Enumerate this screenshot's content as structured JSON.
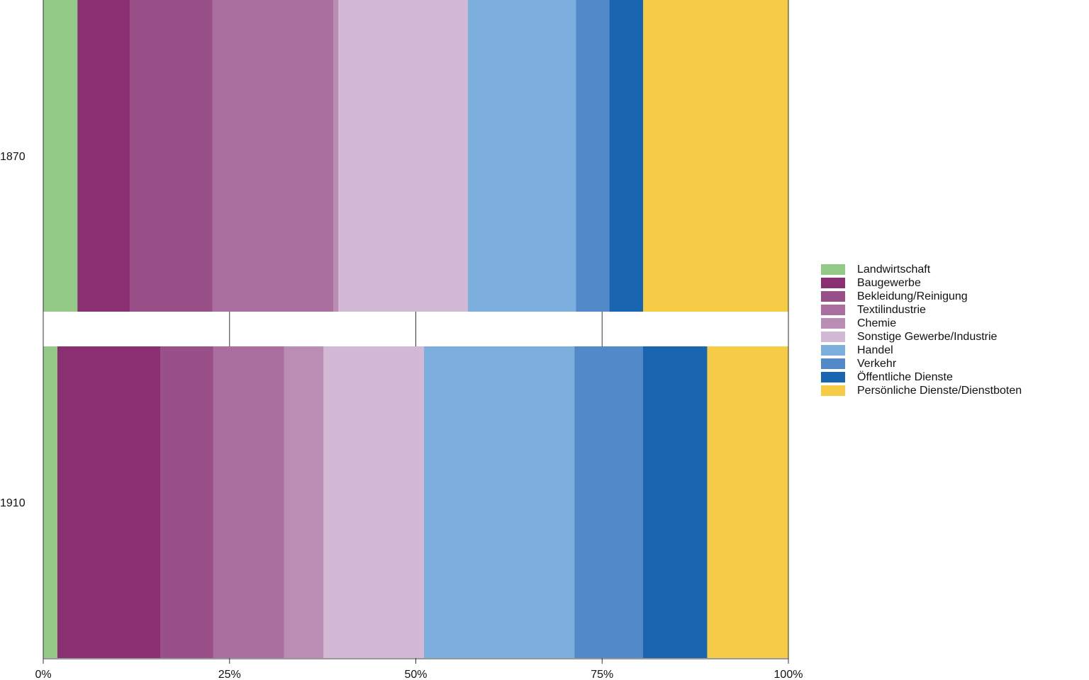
{
  "chart_data": {
    "type": "bar",
    "orientation": "horizontal",
    "stacked": true,
    "normalized": true,
    "categories": [
      "1870",
      "1910"
    ],
    "x_tick_labels": [
      "0%",
      "25%",
      "50%",
      "75%",
      "100%"
    ],
    "xlim": [
      0,
      100
    ],
    "grid": false,
    "legend_position": "right",
    "series": [
      {
        "name": "Landwirtschaft",
        "color": "#92c987",
        "values": [
          4.6,
          1.9
        ]
      },
      {
        "name": "Baugewerbe",
        "color": "#8a2f72",
        "values": [
          7.0,
          13.8
        ]
      },
      {
        "name": "Bekleidung/Reinigung",
        "color": "#994f88",
        "values": [
          11.1,
          7.1
        ]
      },
      {
        "name": "Textilindustrie",
        "color": "#aa6f9e",
        "values": [
          16.2,
          9.5
        ]
      },
      {
        "name": "Chemie",
        "color": "#ba8db4",
        "values": [
          0.7,
          5.3
        ]
      },
      {
        "name": "Sonstige Gewerbe/Industrie",
        "color": "#d2b9d6",
        "values": [
          17.4,
          13.5
        ]
      },
      {
        "name": "Handel",
        "color": "#7dafde",
        "values": [
          14.5,
          20.2
        ]
      },
      {
        "name": "Verkehr",
        "color": "#5289c8",
        "values": [
          4.5,
          9.2
        ]
      },
      {
        "name": "Öffentliche Dienste",
        "color": "#1965b0",
        "values": [
          4.5,
          8.6
        ]
      },
      {
        "name": "Persönliche Dienste/Dienstboten",
        "color": "#f6cb45",
        "values": [
          19.5,
          10.9
        ]
      }
    ]
  }
}
